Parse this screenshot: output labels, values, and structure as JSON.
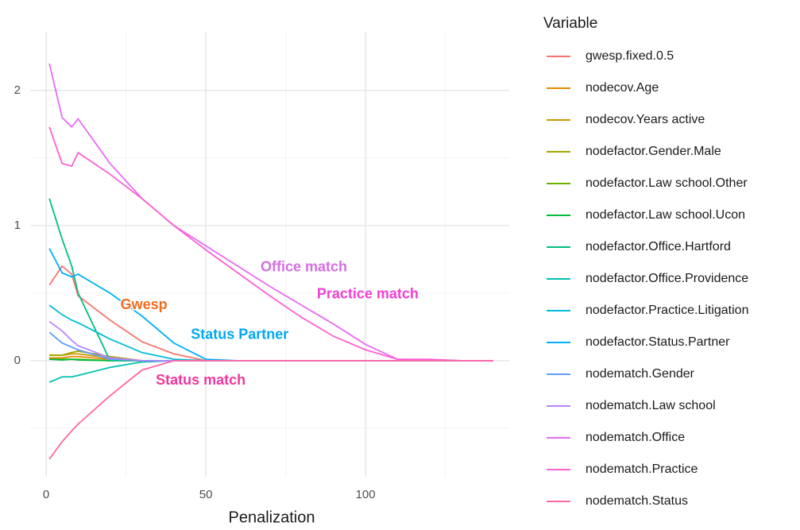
{
  "chart_data": {
    "type": "line",
    "x_label": "Penalization",
    "legend_title": "Variable",
    "legend_position": "right",
    "grid": true,
    "xlim": [
      -5,
      145
    ],
    "xticks": [
      0,
      50,
      100
    ],
    "ylim": [
      -0.86,
      2.435
    ],
    "yticks": [
      0,
      1,
      2
    ],
    "x": [
      1,
      5,
      8,
      10,
      20,
      30,
      40,
      50,
      60,
      70,
      80,
      90,
      100,
      110,
      120,
      130,
      140
    ],
    "series": [
      {
        "name": "gwesp.fixed.0.5",
        "color": "#F8766D",
        "values": [
          0.56,
          0.7,
          0.64,
          0.48,
          0.3,
          0.14,
          0.05,
          0,
          0,
          0,
          0,
          0,
          0,
          0,
          0,
          0,
          0
        ]
      },
      {
        "name": "nodecov.Age",
        "color": "#E58700",
        "values": [
          0.02,
          0.02,
          0.03,
          0.03,
          0.01,
          0,
          0,
          0,
          0,
          0,
          0,
          0,
          0,
          0,
          0,
          0,
          0
        ]
      },
      {
        "name": "nodecov.Years active",
        "color": "#C99800",
        "values": [
          0.04,
          0.04,
          0.05,
          0.05,
          0.02,
          0,
          0,
          0,
          0,
          0,
          0,
          0,
          0,
          0,
          0,
          0,
          0
        ]
      },
      {
        "name": "nodefactor.Gender.Male",
        "color": "#A3A500",
        "values": [
          0.04,
          0.04,
          0.06,
          0.07,
          0.03,
          0,
          0,
          0,
          0,
          0,
          0,
          0,
          0,
          0,
          0,
          0,
          0
        ]
      },
      {
        "name": "nodefactor.Law school.Other",
        "color": "#6BB100",
        "values": [
          0.01,
          0.01,
          0.01,
          0.01,
          0,
          0,
          0,
          0,
          0,
          0,
          0,
          0,
          0,
          0,
          0,
          0,
          0
        ]
      },
      {
        "name": "nodefactor.Law school.Ucon",
        "color": "#00BA38",
        "values": [
          0.01,
          0.005,
          0.01,
          0.005,
          0,
          0,
          0,
          0,
          0,
          0,
          0,
          0,
          0,
          0,
          0,
          0,
          0
        ]
      },
      {
        "name": "nodefactor.Office.Hartford",
        "color": "#00BF7D",
        "values": [
          1.2,
          0.9,
          0.7,
          0.5,
          0,
          0,
          0,
          0,
          0,
          0,
          0,
          0,
          0,
          0,
          0,
          0,
          0
        ]
      },
      {
        "name": "nodefactor.Office.Providence",
        "color": "#00C0AF",
        "values": [
          -0.16,
          -0.12,
          -0.12,
          -0.11,
          -0.05,
          -0.01,
          0,
          0,
          0,
          0,
          0,
          0,
          0,
          0,
          0,
          0,
          0
        ]
      },
      {
        "name": "nodefactor.Practice.Litigation",
        "color": "#00BCD8",
        "values": [
          0.41,
          0.34,
          0.3,
          0.28,
          0.16,
          0.06,
          0.01,
          0,
          0,
          0,
          0,
          0,
          0,
          0,
          0,
          0,
          0
        ]
      },
      {
        "name": "nodefactor.Status.Partner",
        "color": "#00B0F6",
        "values": [
          0.83,
          0.65,
          0.62,
          0.64,
          0.5,
          0.33,
          0.13,
          0.01,
          0,
          0,
          0,
          0,
          0,
          0,
          0,
          0,
          0
        ]
      },
      {
        "name": "nodematch.Gender",
        "color": "#619CFF",
        "values": [
          0.21,
          0.13,
          0.1,
          0.08,
          0.01,
          0,
          0,
          0,
          0,
          0,
          0,
          0,
          0,
          0,
          0,
          0,
          0
        ]
      },
      {
        "name": "nodematch.Law school",
        "color": "#B983FF",
        "values": [
          0.29,
          0.22,
          0.15,
          0.11,
          0.02,
          0,
          0,
          0,
          0,
          0,
          0,
          0,
          0,
          0,
          0,
          0,
          0
        ]
      },
      {
        "name": "nodematch.Office",
        "color": "#E76BF3",
        "values": [
          2.2,
          1.8,
          1.73,
          1.79,
          1.46,
          1.2,
          1.0,
          0.85,
          0.7,
          0.55,
          0.41,
          0.27,
          0.12,
          0.01,
          0.005,
          0,
          0
        ]
      },
      {
        "name": "nodematch.Practice",
        "color": "#FD61D1",
        "values": [
          1.73,
          1.46,
          1.44,
          1.54,
          1.38,
          1.2,
          1.0,
          0.82,
          0.65,
          0.48,
          0.32,
          0.18,
          0.08,
          0.01,
          0.01,
          0,
          0
        ]
      },
      {
        "name": "nodematch.Status",
        "color": "#FF67A4",
        "values": [
          -0.73,
          -0.6,
          -0.52,
          -0.47,
          -0.26,
          -0.07,
          0,
          0,
          0,
          0,
          0,
          0,
          0,
          0,
          0,
          0,
          0
        ]
      }
    ],
    "annotations": [
      {
        "text": "Office match",
        "x": 80.7,
        "y": 0.69,
        "color": "#D36FE0"
      },
      {
        "text": "Practice match",
        "x": 100.7,
        "y": 0.49,
        "color": "#F23FD0"
      },
      {
        "text": "Gwesp",
        "x": 30.6,
        "y": 0.41,
        "color": "#F26B1D"
      },
      {
        "text": "Status Partner",
        "x": 60.6,
        "y": 0.19,
        "color": "#00A9F0"
      },
      {
        "text": "Status match",
        "x": 48.4,
        "y": -0.15,
        "color": "#F0379B"
      }
    ]
  }
}
